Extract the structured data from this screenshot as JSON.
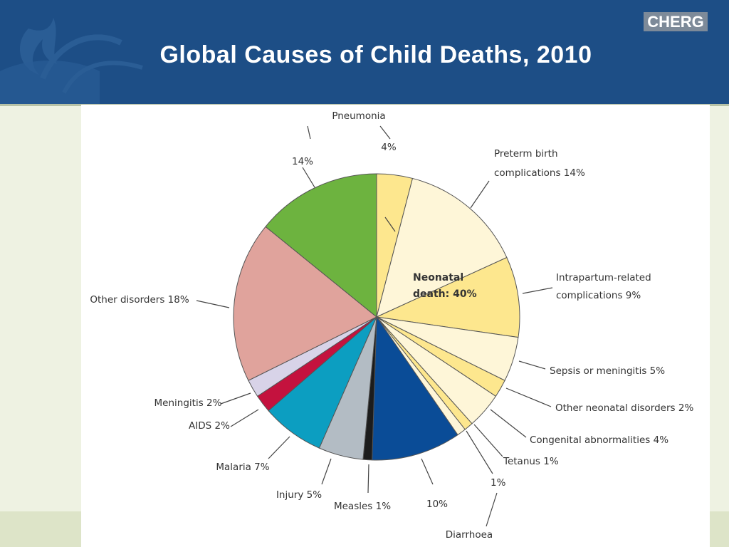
{
  "header": {
    "title": "Global Causes of Child Deaths, 2010",
    "logo_text": "CHERG"
  },
  "colors": {
    "header_bg": "#1d4e86",
    "page_bg": "#eef2e2"
  },
  "chart_data": {
    "type": "pie",
    "center_label": [
      "Neonatal",
      "death: 40%"
    ],
    "slices": [
      {
        "name": "Pneumonia (neonatal)",
        "value": 4,
        "color": "#fde78e",
        "label": [
          "4%"
        ],
        "extra_label": "Pneumonia"
      },
      {
        "name": "Preterm birth complications",
        "value": 14,
        "color": "#fef6d8",
        "label": [
          "Preterm birth",
          "complications 14%"
        ]
      },
      {
        "name": "Intrapartum-related complications",
        "value": 9,
        "color": "#fde78e",
        "label": [
          "Intrapartum-related",
          "complications 9%"
        ]
      },
      {
        "name": "Sepsis or meningitis",
        "value": 5,
        "color": "#fef6d8",
        "label": [
          "Sepsis or meningitis 5%"
        ]
      },
      {
        "name": "Other neonatal disorders",
        "value": 2,
        "color": "#fde78e",
        "label": [
          "Other neonatal disorders 2%"
        ]
      },
      {
        "name": "Congenital abnormalities",
        "value": 4,
        "color": "#fef6d8",
        "label": [
          "Congenital abnormalities 4%"
        ]
      },
      {
        "name": "Tetanus",
        "value": 1,
        "color": "#fde78e",
        "label": [
          "Tetanus 1%"
        ]
      },
      {
        "name": "Diarrhoea (neonatal)",
        "value": 1,
        "color": "#fef6d8",
        "label": [
          "1%"
        ],
        "extra_label": "Diarrhoea"
      },
      {
        "name": "Diarrhoea",
        "value": 10,
        "color": "#0a4c97",
        "label": [
          "10%"
        ]
      },
      {
        "name": "Measles",
        "value": 1,
        "color": "#1c1c1c",
        "label": [
          "Measles 1%"
        ]
      },
      {
        "name": "Injury",
        "value": 5,
        "color": "#b3bcc4",
        "label": [
          "Injury 5%"
        ]
      },
      {
        "name": "Malaria",
        "value": 7,
        "color": "#0c9ec1",
        "label": [
          "Malaria 7%"
        ]
      },
      {
        "name": "AIDS",
        "value": 2,
        "color": "#c4123e",
        "label": [
          "AIDS 2%"
        ]
      },
      {
        "name": "Meningitis",
        "value": 2,
        "color": "#d8d3e8",
        "label": [
          "Meningitis 2%"
        ]
      },
      {
        "name": "Other disorders",
        "value": 18,
        "color": "#e0a39c",
        "label": [
          "Other disorders 18%"
        ]
      },
      {
        "name": "Pneumonia",
        "value": 14,
        "color": "#6db33f",
        "label": [
          "14%"
        ]
      }
    ]
  }
}
